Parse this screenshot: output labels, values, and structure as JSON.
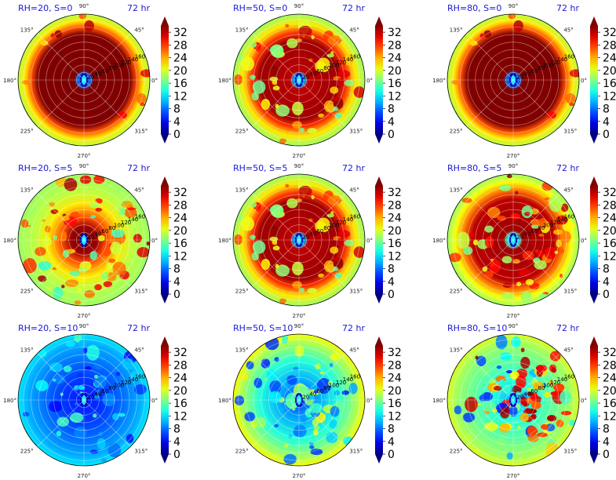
{
  "chart_data": [
    {
      "type": "polar-contourf",
      "label": "RH=20, S=0",
      "time": "72 hr",
      "field": "high-core"
    },
    {
      "type": "polar-contourf",
      "label": "RH=50, S=0",
      "time": "72 hr",
      "field": "high-mottled"
    },
    {
      "type": "polar-contourf",
      "label": "RH=80, S=0",
      "time": "72 hr",
      "field": "high-core"
    },
    {
      "type": "polar-contourf",
      "label": "RH=20, S=5",
      "time": "72 hr",
      "field": "mixed"
    },
    {
      "type": "polar-contourf",
      "label": "RH=50, S=5",
      "time": "72 hr",
      "field": "high-mottled"
    },
    {
      "type": "polar-contourf",
      "label": "RH=80, S=5",
      "time": "72 hr",
      "field": "high-east"
    },
    {
      "type": "polar-contourf",
      "label": "RH=20, S=10",
      "time": "72 hr",
      "field": "low"
    },
    {
      "type": "polar-contourf",
      "label": "RH=50, S=10",
      "time": "72 hr",
      "field": "low-mid"
    },
    {
      "type": "polar-contourf",
      "label": "RH=80, S=10",
      "time": "72 hr",
      "field": "mixed-red-east"
    }
  ],
  "angle_ticks": [
    "0°",
    "45°",
    "90°",
    "135°",
    "180°",
    "225°",
    "270°",
    "315°"
  ],
  "radial_ticks": [
    "20",
    "40",
    "60",
    "80",
    "100",
    "120",
    "140",
    "160"
  ],
  "colorbar": {
    "ticks": [
      "0",
      "4",
      "8",
      "12",
      "16",
      "20",
      "24",
      "28",
      "32"
    ],
    "range": [
      0,
      34
    ],
    "colormap": "jet"
  },
  "colors": {
    "title": "#1a1ad6"
  }
}
